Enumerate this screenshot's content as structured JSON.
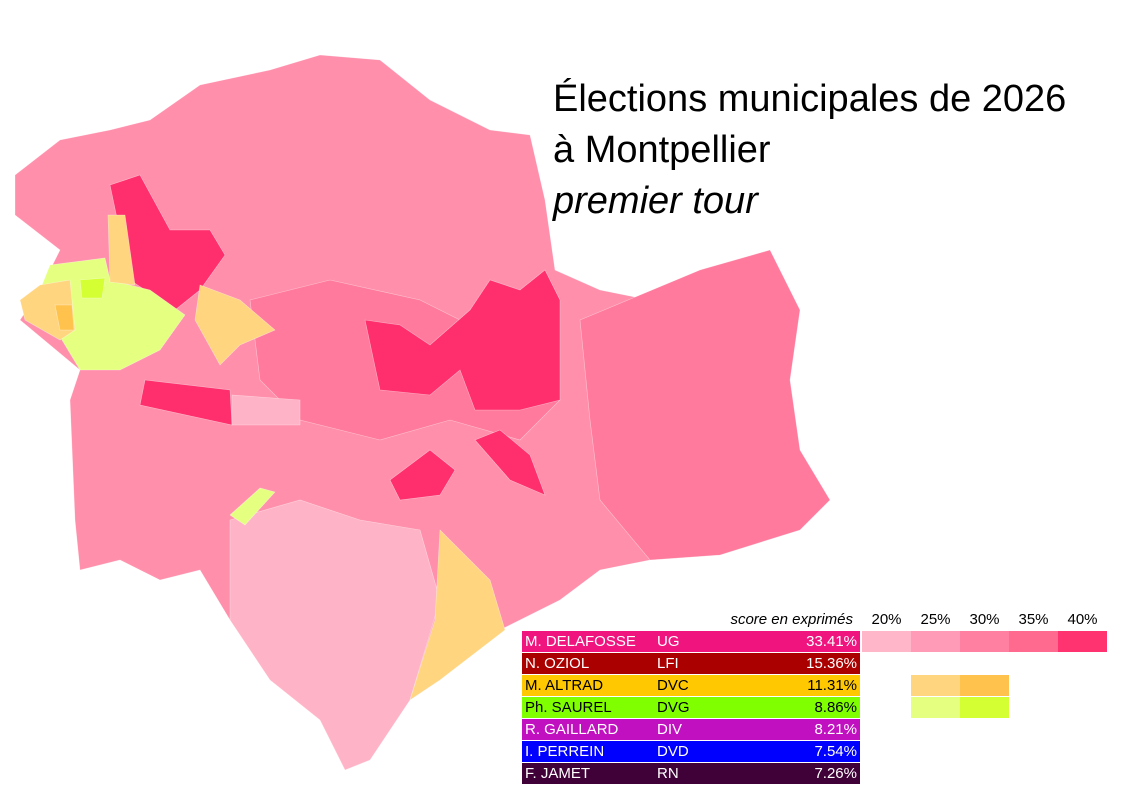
{
  "title": [
    "Élections municipales de 2026",
    "à Montpellier"
  ],
  "subtitle": "premier tour",
  "legend": {
    "header": "score en exprimés",
    "scale": [
      "20%",
      "25%",
      "30%",
      "35%",
      "40%"
    ],
    "candidates": [
      {
        "name": "M. DELAFOSSE",
        "party": "UG",
        "score": "33.41%",
        "color": "#f0147f",
        "text_color": "#ffffff",
        "ramp": [
          "#ffb6c8",
          "#ff9bb6",
          "#ff80a0",
          "#ff6a8e",
          "#ff3370"
        ]
      },
      {
        "name": "N. OZIOL",
        "party": "LFI",
        "score": "15.36%",
        "color": "#aa0000",
        "text_color": "#ffffff",
        "ramp": []
      },
      {
        "name": "M. ALTRAD",
        "party": "DVC",
        "score": "11.31%",
        "color": "#ffc800",
        "text_color": "#000000",
        "ramp": [
          "#ffd580",
          "#ffc34d"
        ]
      },
      {
        "name": "Ph. SAUREL",
        "party": "DVG",
        "score": "8.86%",
        "color": "#80ff00",
        "text_color": "#000000",
        "ramp": [
          "#e5ff80",
          "#d4ff33"
        ]
      },
      {
        "name": "R. GAILLARD",
        "party": "DIV",
        "score": "8.21%",
        "color": "#c010c0",
        "text_color": "#ffffff",
        "ramp": []
      },
      {
        "name": "I. PERREIN",
        "party": "DVD",
        "score": "7.54%",
        "color": "#0000ff",
        "text_color": "#ffffff",
        "ramp": []
      },
      {
        "name": "F. JAMET",
        "party": "RN",
        "score": "7.26%",
        "color": "#400038",
        "text_color": "#ffffff",
        "ramp": []
      }
    ]
  }
}
